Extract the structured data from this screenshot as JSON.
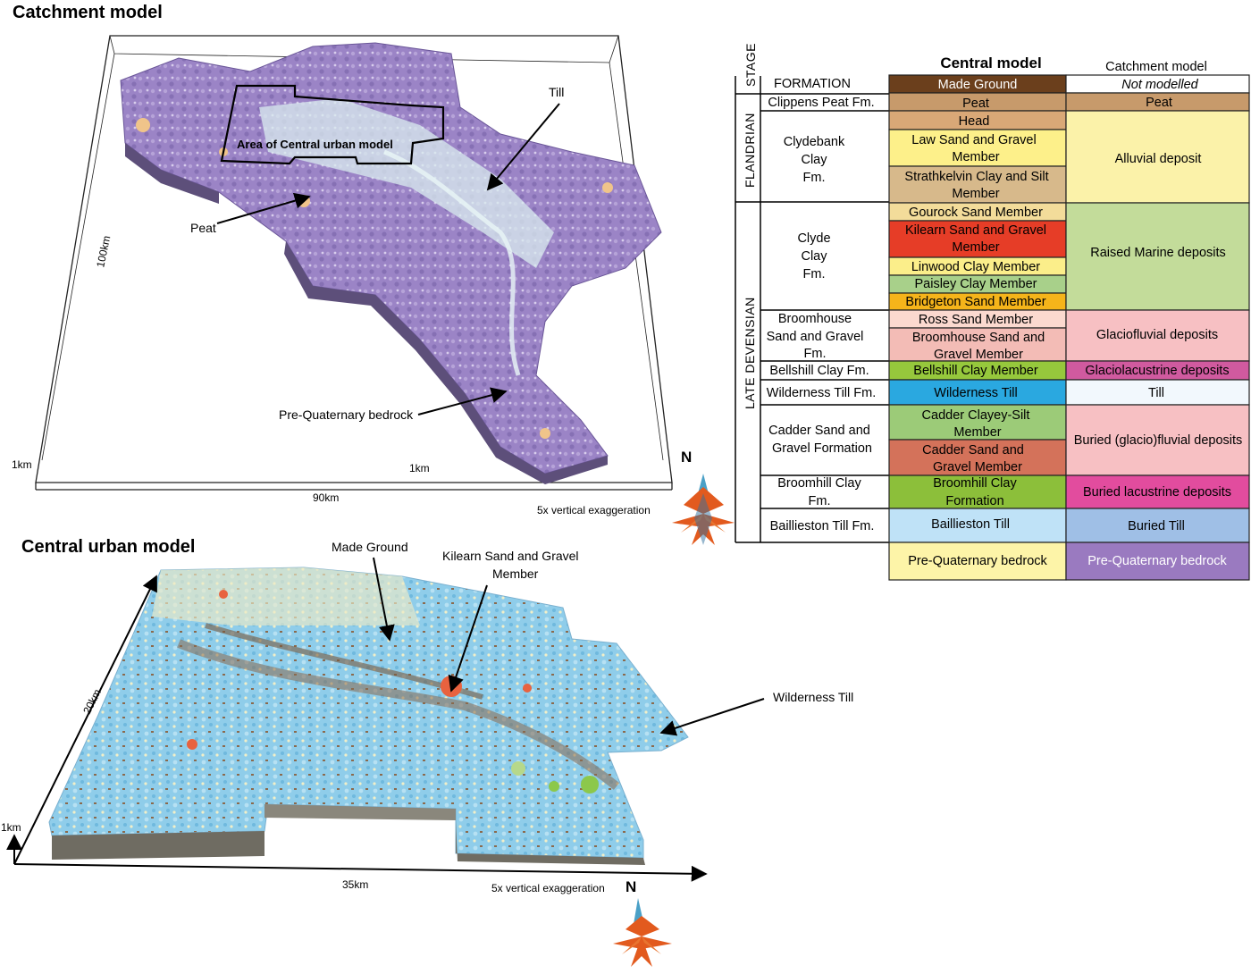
{
  "catchment": {
    "title": "Catchment model",
    "labels": {
      "area_central": "Area of Central urban model",
      "till": "Till",
      "peat": "Peat",
      "bedrock": "Pre-Quaternary bedrock",
      "dim_100km": "100km",
      "dim_90km": "90km",
      "dim_1km_left": "1km",
      "dim_1km_mid": "1km",
      "exaggeration": "5x vertical exaggeration",
      "north": "N"
    }
  },
  "central": {
    "title": "Central urban model",
    "labels": {
      "made_ground": "Made Ground",
      "kilearn_1": "Kilearn Sand and Gravel",
      "kilearn_2": "Member",
      "wilderness": "Wilderness Till",
      "dim_20km": "20km",
      "dim_35km": "35km",
      "dim_1km": "1km",
      "exaggeration": "5x vertical exaggeration",
      "north": "N"
    }
  },
  "legend": {
    "col_stage": "STAGE",
    "col_formation": "FORMATION",
    "col_central": "Central model",
    "col_catchment": "Catchment model",
    "stage_flandrian": "FLANDRIAN",
    "stage_late_devensian": "LATE DEVENSIAN",
    "formations": {
      "clippens": "Clippens Peat Fm.",
      "clydebank": [
        "Clydebank",
        "Clay",
        "Fm."
      ],
      "clyde": [
        "Clyde",
        "Clay",
        "Fm."
      ],
      "broomhouse": [
        "Broomhouse",
        "Sand and Gravel",
        "Fm."
      ],
      "bellshill": "Bellshill Clay Fm.",
      "wilderness": "Wilderness Till Fm.",
      "cadder": [
        "Cadder Sand and",
        "Gravel Formation"
      ],
      "broomhill": [
        "Broomhill Clay",
        "Fm."
      ],
      "baillieston": "Baillieston Till Fm."
    },
    "central_cells": {
      "made_ground": "Made Ground",
      "peat": "Peat",
      "head": "Head",
      "law": [
        "Law Sand and Gravel",
        "Member"
      ],
      "strathkelvin": [
        "Strathkelvin Clay and Silt",
        "Member"
      ],
      "gourock": "Gourock Sand Member",
      "kilearn": [
        "Kilearn Sand and Gravel",
        "Member"
      ],
      "linwood": "Linwood Clay Member",
      "paisley": "Paisley Clay Member",
      "bridgeton": "Bridgeton Sand Member",
      "ross": "Ross Sand Member",
      "broomhouse": [
        "Broomhouse Sand and",
        "Gravel Member"
      ],
      "bellshill": "Bellshill Clay Member",
      "wilderness": "Wilderness Till",
      "cadder_clayey": [
        "Cadder Clayey-Silt",
        "Member"
      ],
      "cadder_sand": [
        "Cadder Sand and",
        "Gravel Member"
      ],
      "broomhill": [
        "Broomhill Clay",
        "Formation"
      ],
      "baillieston": "Baillieston Till",
      "bedrock": "Pre-Quaternary bedrock"
    },
    "catchment_cells": {
      "not_modelled": "Not modelled",
      "peat": "Peat",
      "alluvial": "Alluvial  deposit",
      "raised_marine": "Raised Marine deposits",
      "glaciofluvial": "Glaciofluvial deposits",
      "glaciolacustrine": "Glaciolacustrine deposits",
      "till": "Till",
      "buried_glaciofluvial": "Buried (glacio)fluvial deposits",
      "buried_lacustrine": "Buried lacustrine deposits",
      "buried_till": "Buried Till",
      "bedrock": "Pre-Quaternary bedrock"
    },
    "colors": {
      "made_ground": "#6b3f1c",
      "peat": "#c79a6b",
      "head": "#d9a877",
      "law": "#fdf08a",
      "strathkelvin": "#d7b98b",
      "gourock": "#f3dc9a",
      "kilearn": "#e63d27",
      "linwood": "#fbee8a",
      "paisley": "#a8d08a",
      "bridgeton": "#f5b41a",
      "ross": "#fbd9cf",
      "broomhouse": "#f3bcb6",
      "bellshill": "#96c83c",
      "wilderness": "#2aa8e0",
      "cadder_clayey": "#9ccb78",
      "cadder_sand": "#d4725a",
      "broomhill": "#8cbf3a",
      "baillieston": "#bfe2f7",
      "bedrock_central": "#fdf4a8",
      "alluvial": "#fbf2a9",
      "raised_marine": "#c3dc9a",
      "glaciofluvial": "#f7c0c3",
      "glaciolacustrine": "#d05a9f",
      "till": "#f2f8fd",
      "buried_glaciofluvial": "#f7c0c3",
      "buried_lacustrine": "#e24c9e",
      "buried_till": "#9fbfe6",
      "bedrock_catchment": "#9a7ac0"
    }
  }
}
